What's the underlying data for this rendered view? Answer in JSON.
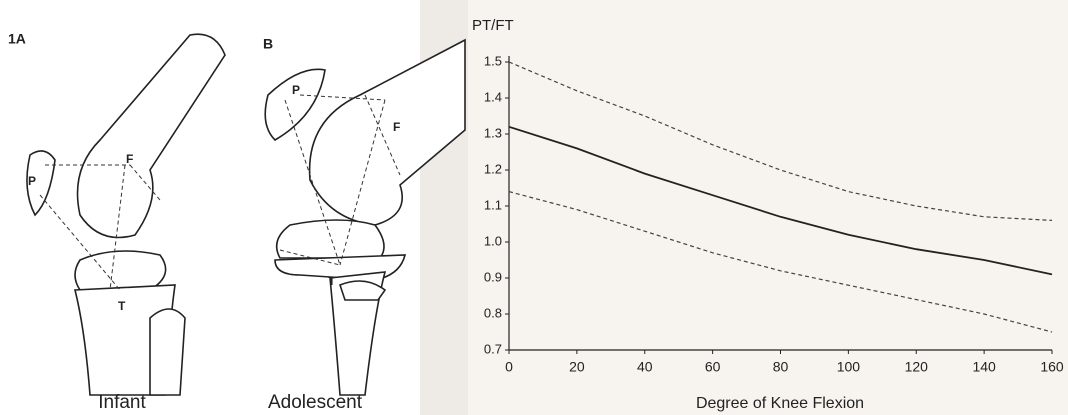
{
  "figure": {
    "panels": [
      {
        "label": "1A",
        "caption": "Infant",
        "markers": [
          "P",
          "F",
          "T"
        ]
      },
      {
        "label": "B",
        "caption": "Adolescent",
        "markers": [
          "P",
          "F",
          "T"
        ]
      }
    ]
  },
  "chart_data": {
    "type": "line",
    "y_label": "PT/FT",
    "x_label": "Degree  of Knee Flexion",
    "x": [
      0,
      20,
      40,
      60,
      80,
      100,
      120,
      140,
      160
    ],
    "series": [
      {
        "color": "#222222",
        "style": "solid",
        "values": [
          1.32,
          1.26,
          1.19,
          1.13,
          1.07,
          1.02,
          0.98,
          0.95,
          0.91
        ]
      },
      {
        "color": "#444444",
        "style": "dashed",
        "values": [
          1.5,
          1.42,
          1.35,
          1.27,
          1.2,
          1.14,
          1.1,
          1.07,
          1.06
        ]
      },
      {
        "color": "#444444",
        "style": "dashed",
        "values": [
          1.14,
          1.09,
          1.03,
          0.97,
          0.92,
          0.88,
          0.84,
          0.8,
          0.75
        ]
      }
    ],
    "xlim": [
      0,
      160
    ],
    "xticks": [
      0,
      20,
      40,
      60,
      80,
      100,
      120,
      140,
      160
    ],
    "ylim": [
      0.7,
      1.5
    ],
    "yticks": [
      0.7,
      0.8,
      0.9,
      {
        "value": 1,
        "label": "1.0"
      },
      1.1,
      1.2,
      1.3,
      1.4,
      1.5
    ]
  }
}
